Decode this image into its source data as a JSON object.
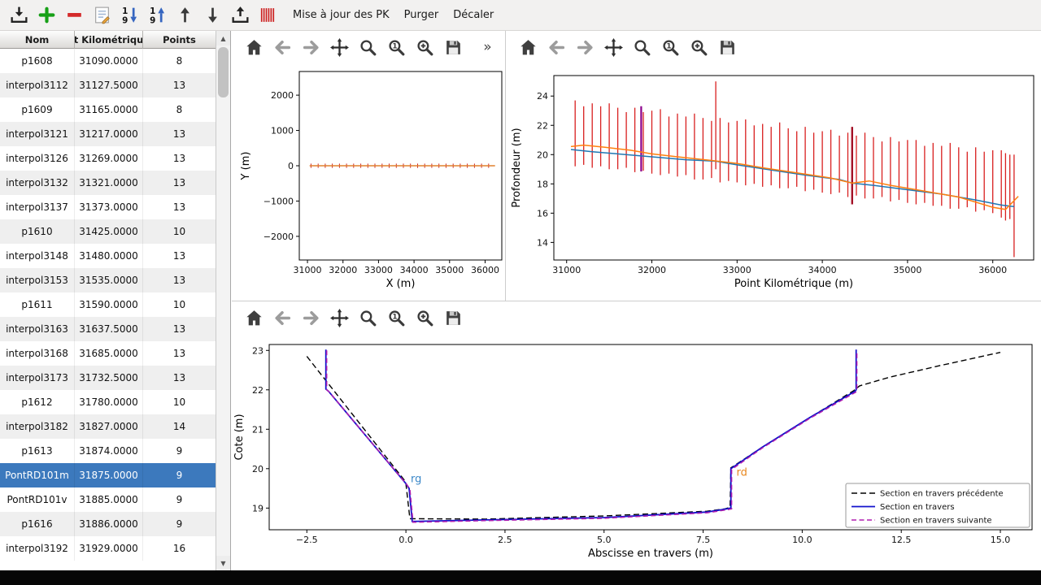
{
  "app": {
    "toolbar_buttons": [
      "import",
      "add",
      "remove",
      "edit",
      "sort-descending",
      "sort-ascending",
      "move-up",
      "move-down",
      "export",
      "sections"
    ],
    "menus": [
      {
        "name": "mise-a-jour-des-pk",
        "label": "Mise à jour des PK"
      },
      {
        "name": "purger",
        "label": "Purger"
      },
      {
        "name": "decaler",
        "label": "Décaler"
      }
    ]
  },
  "mpl_toolbars": {
    "plan": [
      "home",
      "back",
      "forward",
      "pan",
      "zoom",
      "zoom-1",
      "zoom-plus",
      "save",
      "overflow"
    ],
    "profile": [
      "home",
      "back",
      "forward",
      "pan",
      "zoom",
      "zoom-1",
      "zoom-plus",
      "save"
    ],
    "section": [
      "home",
      "back",
      "forward",
      "pan",
      "zoom",
      "zoom-1",
      "zoom-plus",
      "save"
    ]
  },
  "table": {
    "columns": [
      "Nom",
      "t Kilométriqu",
      "Points"
    ],
    "selected": "PontRD101m",
    "rows": [
      [
        "p1608",
        "31090.0000",
        "8"
      ],
      [
        "interpol3112",
        "31127.5000",
        "13"
      ],
      [
        "p1609",
        "31165.0000",
        "8"
      ],
      [
        "interpol3121",
        "31217.0000",
        "13"
      ],
      [
        "interpol3126",
        "31269.0000",
        "13"
      ],
      [
        "interpol3132",
        "31321.0000",
        "13"
      ],
      [
        "interpol3137",
        "31373.0000",
        "13"
      ],
      [
        "p1610",
        "31425.0000",
        "10"
      ],
      [
        "interpol3148",
        "31480.0000",
        "13"
      ],
      [
        "interpol3153",
        "31535.0000",
        "13"
      ],
      [
        "p1611",
        "31590.0000",
        "10"
      ],
      [
        "interpol3163",
        "31637.5000",
        "13"
      ],
      [
        "interpol3168",
        "31685.0000",
        "13"
      ],
      [
        "interpol3173",
        "31732.5000",
        "13"
      ],
      [
        "p1612",
        "31780.0000",
        "10"
      ],
      [
        "interpol3182",
        "31827.0000",
        "14"
      ],
      [
        "p1613",
        "31874.0000",
        "9"
      ],
      [
        "PontRD101m",
        "31875.0000",
        "9"
      ],
      [
        "PontRD101v",
        "31885.0000",
        "9"
      ],
      [
        "p1616",
        "31886.0000",
        "9"
      ],
      [
        "interpol3192",
        "31929.0000",
        "16"
      ]
    ]
  },
  "chart_data": [
    {
      "id": "plan-view",
      "type": "line",
      "xlabel": "X (m)",
      "ylabel": "Y (m)",
      "xlim": [
        30770,
        36470
      ],
      "ylim": [
        -2670,
        2670
      ],
      "xticks": [
        31000,
        32000,
        33000,
        34000,
        35000,
        36000
      ],
      "xticklabels": [
        "31000",
        "32000",
        "33000",
        "34000",
        "35000",
        "36000"
      ],
      "yticks": [
        -2000,
        -1000,
        0,
        1000,
        2000
      ],
      "yticklabels": [
        "−2000",
        "−1000",
        "0",
        "1000",
        "2000"
      ],
      "ticks": {
        "color": "#cc2020",
        "width": 1,
        "half": 60,
        "x": [
          31100,
          31300,
          31500,
          31700,
          31900,
          32100,
          32300,
          32500,
          32700,
          32900,
          33100,
          33300,
          33500,
          33700,
          33900,
          34100,
          34300,
          34500,
          34700,
          34900,
          35100,
          35300,
          35500,
          35700,
          35900,
          36100
        ]
      },
      "series": [
        {
          "name": "axe-riviere",
          "color": "#e0812f",
          "width": 1.6,
          "dash": "",
          "x": [
            31060,
            36280
          ],
          "y": [
            0,
            0
          ]
        }
      ]
    },
    {
      "id": "profil-en-long",
      "type": "line",
      "xlabel": "Point Kilométrique (m)",
      "ylabel": "Profondeur (m)",
      "xlim": [
        30850,
        36480
      ],
      "ylim": [
        12.8,
        25.4
      ],
      "xticks": [
        31000,
        32000,
        33000,
        34000,
        35000,
        36000
      ],
      "xticklabels": [
        "31000",
        "32000",
        "33000",
        "34000",
        "35000",
        "36000"
      ],
      "yticks": [
        14,
        16,
        18,
        20,
        22,
        24
      ],
      "yticklabels": [
        "14",
        "16",
        "18",
        "20",
        "22",
        "24"
      ],
      "bars": {
        "color": "#d81f1f",
        "width": 1.3,
        "x": [
          31100,
          31200,
          31300,
          31400,
          31500,
          31600,
          31700,
          31800,
          31900,
          32000,
          32100,
          32200,
          32300,
          32400,
          32500,
          32600,
          32700,
          32750,
          32800,
          32900,
          33000,
          33100,
          33200,
          33300,
          33400,
          33500,
          33600,
          33700,
          33800,
          33900,
          34000,
          34100,
          34200,
          34300,
          34400,
          34500,
          34600,
          34700,
          34800,
          34900,
          35000,
          35100,
          35200,
          35300,
          35400,
          35500,
          35600,
          35700,
          35800,
          35900,
          36000,
          36100,
          36150,
          36200,
          36250
        ],
        "lo": [
          19.2,
          19.3,
          19.1,
          19.2,
          19.0,
          19.0,
          19.1,
          18.8,
          18.9,
          18.7,
          18.6,
          18.7,
          18.5,
          18.6,
          18.3,
          18.3,
          18.4,
          19.0,
          18.1,
          18.2,
          18.1,
          17.9,
          18.0,
          17.8,
          17.9,
          17.7,
          17.7,
          17.8,
          17.5,
          17.6,
          17.4,
          17.3,
          17.4,
          17.1,
          17.2,
          17.0,
          17.0,
          17.1,
          16.8,
          16.9,
          16.7,
          16.6,
          16.7,
          16.5,
          16.5,
          16.3,
          16.3,
          16.4,
          16.1,
          16.2,
          16.0,
          15.7,
          15.5,
          15.6,
          13.0
        ],
        "hi": [
          23.7,
          23.3,
          23.5,
          23.3,
          23.5,
          23.2,
          22.9,
          23.2,
          22.9,
          23.0,
          23.1,
          22.6,
          22.8,
          22.6,
          22.8,
          22.5,
          22.3,
          25.0,
          22.5,
          22.2,
          22.3,
          22.4,
          22.0,
          22.1,
          21.9,
          22.2,
          21.8,
          21.6,
          21.9,
          21.5,
          21.6,
          21.7,
          21.3,
          21.5,
          21.3,
          21.5,
          21.2,
          20.9,
          21.2,
          20.9,
          21.0,
          21.0,
          20.6,
          20.8,
          20.6,
          20.8,
          20.5,
          20.2,
          20.5,
          20.2,
          20.3,
          20.3,
          20.1,
          20.0,
          20.0
        ]
      },
      "markers": [
        {
          "x": 31875,
          "lo": 18.85,
          "hi": 23.3,
          "color": "#8b008b",
          "width": 2.2
        },
        {
          "x": 34350,
          "lo": 16.6,
          "hi": 21.9,
          "color": "#a31126",
          "width": 2.4
        }
      ],
      "series": [
        {
          "name": "profil-bleu",
          "color": "#1f77b4",
          "width": 1.5,
          "dash": "",
          "x": [
            31050,
            31300,
            31600,
            32000,
            32400,
            32750,
            33000,
            33400,
            33800,
            34200,
            34350,
            34600,
            35000,
            35400,
            35800,
            36100,
            36250
          ],
          "y": [
            20.35,
            20.2,
            20.05,
            19.85,
            19.65,
            19.55,
            19.3,
            18.95,
            18.6,
            18.3,
            18.05,
            17.9,
            17.6,
            17.3,
            16.9,
            16.55,
            16.45
          ]
        },
        {
          "name": "profil-orange",
          "color": "#ff7f0e",
          "width": 1.5,
          "dash": "",
          "x": [
            31050,
            31200,
            31450,
            31750,
            32000,
            32300,
            32700,
            33000,
            33300,
            33700,
            34100,
            34350,
            34550,
            34800,
            35200,
            35600,
            36000,
            36150,
            36300
          ],
          "y": [
            20.55,
            20.65,
            20.5,
            20.3,
            20.05,
            19.85,
            19.6,
            19.4,
            19.1,
            18.75,
            18.4,
            18.05,
            18.2,
            17.9,
            17.5,
            17.1,
            16.4,
            16.25,
            17.15
          ]
        }
      ]
    },
    {
      "id": "section-en-travers",
      "type": "line",
      "xlabel": "Abscisse en travers (m)",
      "ylabel": "Cote (m)",
      "xlim": [
        -3.45,
        15.8
      ],
      "ylim": [
        18.45,
        23.15
      ],
      "xticks": [
        -2.5,
        0,
        2.5,
        5,
        7.5,
        10,
        12.5,
        15
      ],
      "xticklabels": [
        "−2.5",
        "0.0",
        "2.5",
        "5.0",
        "7.5",
        "10.0",
        "12.5",
        "15.0"
      ],
      "yticks": [
        19,
        20,
        21,
        22,
        23
      ],
      "yticklabels": [
        "19",
        "20",
        "21",
        "22",
        "23"
      ],
      "series": [
        {
          "name": "Section en travers précédente",
          "color": "#000000",
          "width": 1.4,
          "dash": "7,4",
          "x": [
            -2.5,
            -0.05,
            0.0,
            0.1,
            2.0,
            5.0,
            7.6,
            8.05,
            8.18,
            8.2,
            9.0,
            10.2,
            11.3,
            11.45,
            12.2,
            13.5,
            15.0
          ],
          "y": [
            22.85,
            19.72,
            19.62,
            18.73,
            18.72,
            18.8,
            18.92,
            18.98,
            19.02,
            20.02,
            20.55,
            21.3,
            21.98,
            22.1,
            22.32,
            22.62,
            22.95
          ]
        },
        {
          "name": "Section en travers",
          "color": "#1212cc",
          "width": 1.8,
          "dash": "",
          "x": [
            -2.02,
            -2.02,
            -1.95,
            0.0,
            0.08,
            0.16,
            2.0,
            5.0,
            7.6,
            8.1,
            8.2,
            8.2,
            9.0,
            10.2,
            11.33,
            11.36,
            11.36
          ],
          "y": [
            23.02,
            22.02,
            21.96,
            19.62,
            19.5,
            18.66,
            18.7,
            18.76,
            18.9,
            18.98,
            19.0,
            20.0,
            20.55,
            21.3,
            21.96,
            22.0,
            23.02
          ]
        },
        {
          "name": "Section en travers suivante",
          "color": "#b01fb0",
          "width": 1.5,
          "dash": "6,3.5",
          "x": [
            -2.0,
            -2.0,
            -1.93,
            0.02,
            0.1,
            0.18,
            2.0,
            5.0,
            7.6,
            8.12,
            8.22,
            8.22,
            9.0,
            10.2,
            11.35,
            11.38,
            11.38
          ],
          "y": [
            23.0,
            22.0,
            21.94,
            19.6,
            19.48,
            18.64,
            18.68,
            18.74,
            18.88,
            18.96,
            18.98,
            19.98,
            20.53,
            21.28,
            21.94,
            21.98,
            23.0
          ]
        }
      ],
      "annotations": [
        {
          "text": "rg",
          "x": 0.08,
          "y": 19.66,
          "color": "#3a87c8"
        },
        {
          "text": "rd",
          "x": 8.3,
          "y": 19.82,
          "color": "#e8871e"
        }
      ],
      "legend": {
        "entries": [
          {
            "label": "Section en travers précédente",
            "color": "#000000",
            "dash": "7,4",
            "width": 1.4
          },
          {
            "label": "Section en travers",
            "color": "#1212cc",
            "dash": "",
            "width": 1.8
          },
          {
            "label": "Section en travers suivante",
            "color": "#b01fb0",
            "dash": "6,3.5",
            "width": 1.5
          }
        ]
      }
    }
  ]
}
